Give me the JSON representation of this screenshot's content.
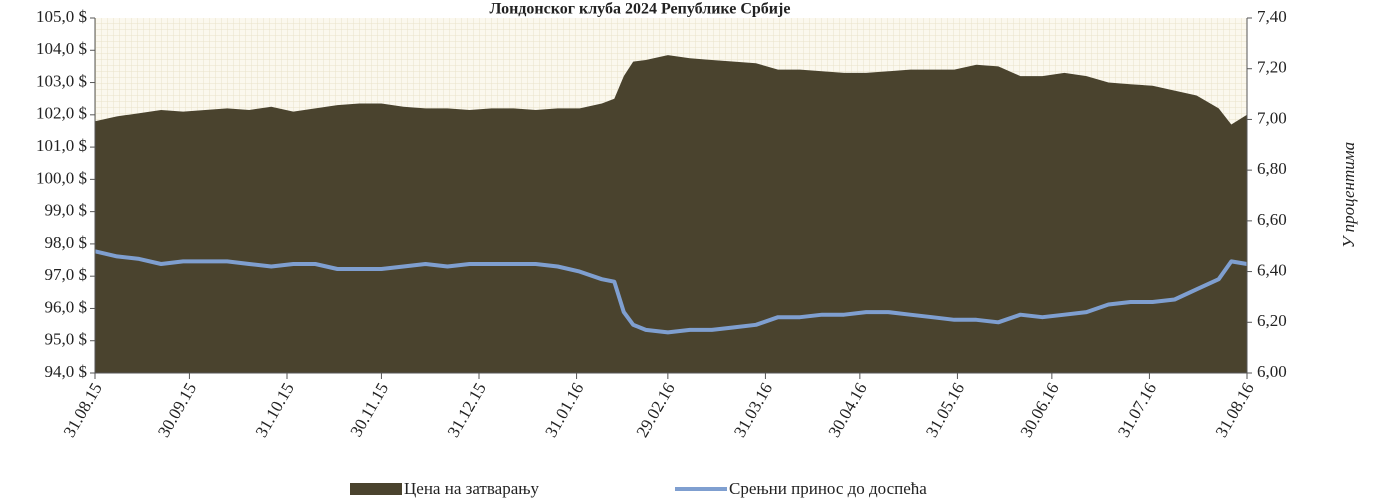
{
  "chart_data": {
    "type": "area-line",
    "title": "Лондонског клуба 2024 Републике Србије",
    "y2label": "У процентима",
    "x": [
      "2015-08-31",
      "2015-09-07",
      "2015-09-14",
      "2015-09-21",
      "2015-09-28",
      "2015-10-05",
      "2015-10-12",
      "2015-10-19",
      "2015-10-26",
      "2015-11-02",
      "2015-11-09",
      "2015-11-16",
      "2015-11-23",
      "2015-11-30",
      "2015-12-07",
      "2015-12-14",
      "2015-12-21",
      "2015-12-28",
      "2016-01-04",
      "2016-01-11",
      "2016-01-18",
      "2016-01-25",
      "2016-02-01",
      "2016-02-08",
      "2016-02-12",
      "2016-02-15",
      "2016-02-18",
      "2016-02-22",
      "2016-02-29",
      "2016-03-07",
      "2016-03-14",
      "2016-03-21",
      "2016-03-28",
      "2016-04-04",
      "2016-04-11",
      "2016-04-18",
      "2016-04-25",
      "2016-05-02",
      "2016-05-09",
      "2016-05-16",
      "2016-05-23",
      "2016-05-30",
      "2016-06-06",
      "2016-06-13",
      "2016-06-20",
      "2016-06-27",
      "2016-07-04",
      "2016-07-11",
      "2016-07-18",
      "2016-07-25",
      "2016-08-01",
      "2016-08-08",
      "2016-08-15",
      "2016-08-22",
      "2016-08-26",
      "2016-08-31"
    ],
    "series": [
      {
        "name": "Цена на затварању",
        "color": "#4a432e",
        "values": [
          101.8,
          101.95,
          102.05,
          102.15,
          102.1,
          102.15,
          102.2,
          102.15,
          102.25,
          102.1,
          102.2,
          102.3,
          102.35,
          102.35,
          102.25,
          102.2,
          102.2,
          102.15,
          102.2,
          102.2,
          102.15,
          102.2,
          102.2,
          102.35,
          102.5,
          103.2,
          103.65,
          103.7,
          103.85,
          103.75,
          103.7,
          103.65,
          103.6,
          103.4,
          103.4,
          103.35,
          103.3,
          103.3,
          103.35,
          103.4,
          103.4,
          103.4,
          103.55,
          103.5,
          103.2,
          103.2,
          103.3,
          103.2,
          103.0,
          102.95,
          102.9,
          102.75,
          102.6,
          102.2,
          101.7,
          102.0
        ]
      },
      {
        "name": "Срењни принос до доспећа",
        "color": "#7f9fd0",
        "axis": "y2",
        "values": [
          6.48,
          6.46,
          6.45,
          6.43,
          6.44,
          6.44,
          6.44,
          6.43,
          6.42,
          6.43,
          6.43,
          6.41,
          6.41,
          6.41,
          6.42,
          6.43,
          6.42,
          6.43,
          6.43,
          6.43,
          6.43,
          6.42,
          6.4,
          6.37,
          6.36,
          6.24,
          6.19,
          6.17,
          6.16,
          6.17,
          6.17,
          6.18,
          6.19,
          6.22,
          6.22,
          6.23,
          6.23,
          6.24,
          6.24,
          6.23,
          6.22,
          6.21,
          6.21,
          6.2,
          6.23,
          6.22,
          6.23,
          6.24,
          6.27,
          6.28,
          6.28,
          6.29,
          6.33,
          6.37,
          6.44,
          6.43
        ]
      }
    ],
    "xlim": [
      "2015-08-31",
      "2016-08-31"
    ],
    "xticks": [
      {
        "value": "2015-08-31",
        "label": "31.08.15"
      },
      {
        "value": "2015-09-30",
        "label": "30.09.15"
      },
      {
        "value": "2015-10-31",
        "label": "31.10.15"
      },
      {
        "value": "2015-11-30",
        "label": "30.11.15"
      },
      {
        "value": "2015-12-31",
        "label": "31.12.15"
      },
      {
        "value": "2016-01-31",
        "label": "31.01.16"
      },
      {
        "value": "2016-02-29",
        "label": "29.02.16"
      },
      {
        "value": "2016-03-31",
        "label": "31.03.16"
      },
      {
        "value": "2016-04-30",
        "label": "30.04.16"
      },
      {
        "value": "2016-05-31",
        "label": "31.05.16"
      },
      {
        "value": "2016-06-30",
        "label": "30.06.16"
      },
      {
        "value": "2016-07-31",
        "label": "31.07.16"
      },
      {
        "value": "2016-08-31",
        "label": "31.08.16"
      }
    ],
    "ylim": [
      94,
      105
    ],
    "yticks": [
      {
        "value": 94,
        "label": "94,0 $"
      },
      {
        "value": 95,
        "label": "95,0 $"
      },
      {
        "value": 96,
        "label": "96,0 $"
      },
      {
        "value": 97,
        "label": "97,0 $"
      },
      {
        "value": 98,
        "label": "98,0 $"
      },
      {
        "value": 99,
        "label": "99,0 $"
      },
      {
        "value": 100,
        "label": "100,0 $"
      },
      {
        "value": 101,
        "label": "101,0 $"
      },
      {
        "value": 102,
        "label": "102,0 $"
      },
      {
        "value": 103,
        "label": "103,0 $"
      },
      {
        "value": 104,
        "label": "104,0 $"
      },
      {
        "value": 105,
        "label": "105,0 $"
      }
    ],
    "y2lim": [
      6.0,
      7.4
    ],
    "y2ticks": [
      {
        "value": 6.0,
        "label": "6,00"
      },
      {
        "value": 6.2,
        "label": "6,20"
      },
      {
        "value": 6.4,
        "label": "6,40"
      },
      {
        "value": 6.6,
        "label": "6,60"
      },
      {
        "value": 6.8,
        "label": "6,80"
      },
      {
        "value": 7.0,
        "label": "7,00"
      },
      {
        "value": 7.2,
        "label": "7,20"
      },
      {
        "value": 7.4,
        "label": "7,40"
      }
    ],
    "legend": "bottom"
  }
}
